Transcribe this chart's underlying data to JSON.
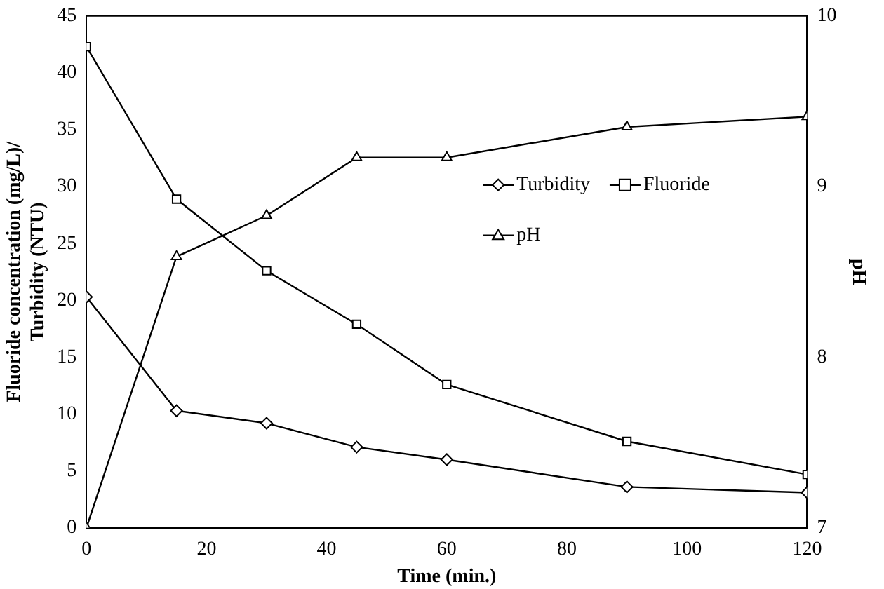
{
  "chart_data": {
    "type": "line",
    "xlabel": "Time (min.)",
    "ylabel": "Fluoride concentration (mg/L)/ Turbidity (NTU)",
    "y2label": "pH",
    "x": [
      0,
      15,
      30,
      45,
      60,
      90,
      120
    ],
    "series": [
      {
        "name": "Turbidity",
        "color": "#000000",
        "marker": "diamond",
        "values": [
          20.3,
          10.3,
          9.2,
          7.1,
          6.0,
          3.6,
          3.1
        ]
      },
      {
        "name": "Fluoride",
        "color": "#000000",
        "marker": "square",
        "values": [
          42.3,
          28.9,
          22.6,
          17.9,
          12.6,
          7.6,
          4.7
        ]
      },
      {
        "name": "pH",
        "color": "#000000",
        "marker": "triangle",
        "axis": "y2",
        "values": [
          7.0,
          8.59,
          8.83,
          9.17,
          9.17,
          9.35,
          9.41
        ]
      }
    ],
    "xlim": [
      0,
      120
    ],
    "xticks": [
      0,
      20,
      40,
      60,
      80,
      100,
      120
    ],
    "ylim": [
      0,
      45
    ],
    "yticks": [
      0,
      5,
      10,
      15,
      20,
      25,
      30,
      35,
      40,
      45
    ],
    "y2lim": [
      7,
      10
    ],
    "y2ticks": [
      7,
      8,
      9,
      10
    ],
    "grid": false,
    "legend": "right"
  }
}
